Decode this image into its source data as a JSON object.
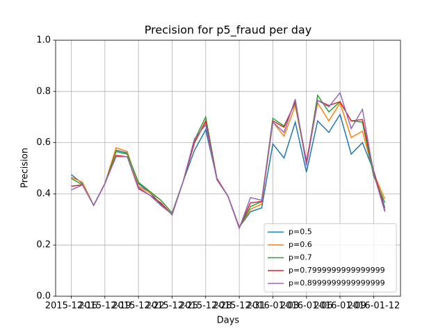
{
  "chart_data": {
    "type": "line",
    "title": "Precision for p5_fraud per day",
    "x_label": "Days",
    "y_label": "Precision",
    "x": [
      "2015-12-16",
      "2015-12-17",
      "2015-12-18",
      "2015-12-19",
      "2015-12-20",
      "2015-12-21",
      "2015-12-22",
      "2015-12-23",
      "2015-12-24",
      "2015-12-25",
      "2015-12-26",
      "2015-12-27",
      "2015-12-28",
      "2015-12-29",
      "2015-12-30",
      "2015-12-31",
      "2016-01-01",
      "2016-01-02",
      "2016-01-03",
      "2016-01-04",
      "2016-01-05",
      "2016-01-06",
      "2016-01-07",
      "2016-01-08",
      "2016-01-09",
      "2016-01-10",
      "2016-01-11",
      "2016-01-12",
      "2016-01-13"
    ],
    "series": [
      {
        "name": "p=0.5",
        "color": "#1f77b4",
        "values": [
          0.475,
          0.44,
          0.355,
          0.44,
          0.57,
          0.56,
          0.44,
          0.405,
          0.36,
          0.32,
          0.45,
          0.57,
          0.65,
          0.46,
          0.39,
          0.27,
          0.33,
          0.345,
          0.595,
          0.54,
          0.68,
          0.485,
          0.685,
          0.64,
          0.71,
          0.555,
          0.6,
          0.49,
          0.345
        ]
      },
      {
        "name": "p=0.6",
        "color": "#ff7f0e",
        "values": [
          0.465,
          0.445,
          0.355,
          0.44,
          0.58,
          0.565,
          0.43,
          0.405,
          0.375,
          0.325,
          0.45,
          0.6,
          0.68,
          0.46,
          0.39,
          0.27,
          0.34,
          0.36,
          0.68,
          0.625,
          0.745,
          0.52,
          0.755,
          0.685,
          0.755,
          0.62,
          0.645,
          0.48,
          0.38
        ]
      },
      {
        "name": "p=0.7",
        "color": "#2ca02c",
        "values": [
          0.46,
          0.435,
          0.355,
          0.44,
          0.565,
          0.555,
          0.445,
          0.41,
          0.375,
          0.325,
          0.45,
          0.61,
          0.7,
          0.46,
          0.39,
          0.268,
          0.35,
          0.37,
          0.695,
          0.665,
          0.755,
          0.515,
          0.785,
          0.72,
          0.76,
          0.685,
          0.68,
          0.47,
          0.365
        ]
      },
      {
        "name": "p=0.7999999999999999",
        "color": "#d62728",
        "values": [
          0.43,
          0.435,
          0.355,
          0.44,
          0.55,
          0.545,
          0.42,
          0.395,
          0.365,
          0.318,
          0.45,
          0.6,
          0.685,
          0.46,
          0.39,
          0.268,
          0.365,
          0.37,
          0.685,
          0.66,
          0.76,
          0.525,
          0.765,
          0.745,
          0.76,
          0.685,
          0.69,
          0.49,
          0.335
        ]
      },
      {
        "name": "p=0.8999999999999999",
        "color": "#9467bd",
        "values": [
          0.415,
          0.435,
          0.355,
          0.44,
          0.545,
          0.545,
          0.425,
          0.395,
          0.355,
          0.32,
          0.45,
          0.615,
          0.67,
          0.455,
          0.39,
          0.265,
          0.385,
          0.375,
          0.68,
          0.64,
          0.77,
          0.51,
          0.765,
          0.74,
          0.795,
          0.655,
          0.73,
          0.48,
          0.33
        ]
      }
    ],
    "xlim": [
      "2015-12-14T14:24",
      "2016-01-14T09:36"
    ],
    "xticks": [
      "2015-12-16",
      "2015-12-19",
      "2015-12-22",
      "2015-12-25",
      "2015-12-28",
      "2015-12-31",
      "2016-01-03",
      "2016-01-06",
      "2016-01-09",
      "2016-01-12"
    ],
    "ylim": [
      0,
      1
    ],
    "yticks": [
      {
        "value": 0,
        "label": "0.0"
      },
      0.2,
      0.4,
      0.6,
      0.8,
      {
        "value": 1,
        "label": "1.0"
      }
    ],
    "grid": true,
    "legend": "lower right"
  }
}
